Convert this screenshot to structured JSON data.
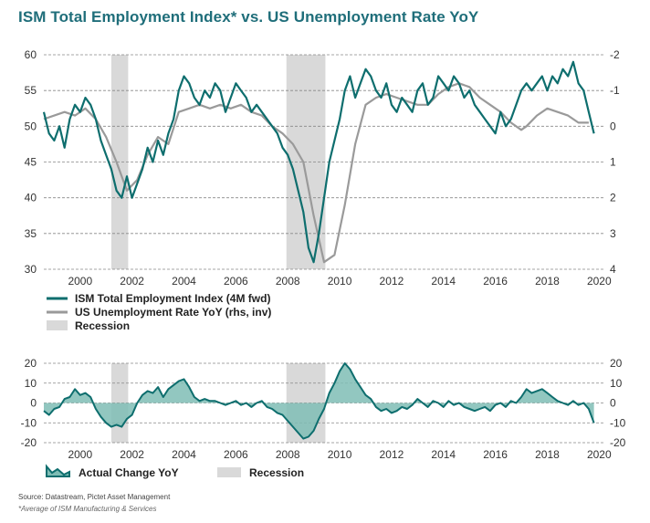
{
  "title": "ISM Total Employment Index* vs. US Unemployment Rate YoY",
  "source": "Source: Datastream, Pictet Asset Management",
  "footnote": "*Average of ISM Manufacturing & Services",
  "colors": {
    "ism": "#0e6e6e",
    "unemp": "#9a9a9a",
    "recession": "#d9d9d9",
    "area_fill": "#7fbdb5",
    "area_line": "#0e6e6e",
    "grid": "#888888"
  },
  "chart_data": [
    {
      "type": "line",
      "title": "",
      "legend": [
        {
          "label": "ISM Total Employment Index (4M fwd)"
        },
        {
          "label": "US Unemployment Rate YoY (rhs, inv)"
        },
        {
          "label": "Recession"
        }
      ],
      "x_ticks": [
        "2000",
        "2002",
        "2004",
        "2006",
        "2008",
        "2010",
        "2012",
        "2014",
        "2016",
        "2018",
        "2020"
      ],
      "y_left_ticks": [
        "30",
        "35",
        "40",
        "45",
        "50",
        "55",
        "60"
      ],
      "y_right_ticks": [
        "4",
        "3",
        "2",
        "1",
        "0",
        "-1",
        "-2"
      ],
      "ylim_left": [
        30,
        60
      ],
      "ylim_right_inverted": [
        4,
        -2
      ],
      "xlim": [
        1998.6,
        2020.2
      ],
      "recessions": [
        [
          2001.2,
          2001.85
        ],
        [
          2007.95,
          2009.45
        ]
      ],
      "series": [
        {
          "name": "ISM Total Employment Index (4M fwd)",
          "axis": "left",
          "x": [
            1998.6,
            1998.8,
            1999.0,
            1999.2,
            1999.4,
            1999.6,
            1999.8,
            2000.0,
            2000.2,
            2000.4,
            2000.6,
            2000.8,
            2001.0,
            2001.2,
            2001.4,
            2001.6,
            2001.8,
            2002.0,
            2002.2,
            2002.4,
            2002.6,
            2002.8,
            2003.0,
            2003.2,
            2003.4,
            2003.6,
            2003.8,
            2004.0,
            2004.2,
            2004.4,
            2004.6,
            2004.8,
            2005.0,
            2005.2,
            2005.4,
            2005.6,
            2005.8,
            2006.0,
            2006.2,
            2006.4,
            2006.6,
            2006.8,
            2007.0,
            2007.2,
            2007.4,
            2007.6,
            2007.8,
            2008.0,
            2008.2,
            2008.4,
            2008.6,
            2008.8,
            2009.0,
            2009.2,
            2009.4,
            2009.6,
            2009.8,
            2010.0,
            2010.2,
            2010.4,
            2010.6,
            2010.8,
            2011.0,
            2011.2,
            2011.4,
            2011.6,
            2011.8,
            2012.0,
            2012.2,
            2012.4,
            2012.6,
            2012.8,
            2013.0,
            2013.2,
            2013.4,
            2013.6,
            2013.8,
            2014.0,
            2014.2,
            2014.4,
            2014.6,
            2014.8,
            2015.0,
            2015.2,
            2015.4,
            2015.6,
            2015.8,
            2016.0,
            2016.2,
            2016.4,
            2016.6,
            2016.8,
            2017.0,
            2017.2,
            2017.4,
            2017.6,
            2017.8,
            2018.0,
            2018.2,
            2018.4,
            2018.6,
            2018.8,
            2019.0,
            2019.2,
            2019.4,
            2019.6,
            2019.8
          ],
          "values": [
            52,
            49,
            48,
            50,
            47,
            51,
            53,
            52,
            54,
            53,
            51,
            48,
            46,
            44,
            41,
            40,
            43,
            40,
            42,
            44,
            47,
            45,
            48,
            46,
            49,
            51,
            55,
            57,
            56,
            54,
            53,
            55,
            54,
            56,
            55,
            52,
            54,
            56,
            55,
            54,
            52,
            53,
            52,
            51,
            50,
            49,
            47,
            46,
            44,
            41,
            38,
            33,
            31,
            35,
            40,
            45,
            48,
            51,
            55,
            57,
            54,
            56,
            58,
            57,
            55,
            54,
            56,
            53,
            52,
            54,
            53,
            52,
            55,
            56,
            53,
            54,
            57,
            56,
            55,
            57,
            56,
            54,
            55,
            53,
            52,
            51,
            50,
            49,
            52,
            50,
            51,
            53,
            55,
            56,
            55,
            56,
            57,
            55,
            57,
            56,
            58,
            57,
            59,
            56,
            55,
            52,
            49
          ]
        },
        {
          "name": "US Unemployment Rate YoY (rhs, inv)",
          "axis": "right",
          "x": [
            1998.6,
            1999.0,
            1999.4,
            1999.8,
            2000.2,
            2000.6,
            2001.0,
            2001.4,
            2001.8,
            2002.2,
            2002.6,
            2003.0,
            2003.4,
            2003.8,
            2004.2,
            2004.6,
            2005.0,
            2005.4,
            2005.8,
            2006.2,
            2006.6,
            2007.0,
            2007.4,
            2007.8,
            2008.2,
            2008.6,
            2009.0,
            2009.4,
            2009.8,
            2010.2,
            2010.6,
            2011.0,
            2011.4,
            2011.8,
            2012.2,
            2012.6,
            2013.0,
            2013.4,
            2013.8,
            2014.2,
            2014.6,
            2015.0,
            2015.4,
            2015.8,
            2016.2,
            2016.6,
            2017.0,
            2017.2,
            2017.6,
            2018.0,
            2018.4,
            2018.8,
            2019.2,
            2019.6
          ],
          "values": [
            -0.2,
            -0.3,
            -0.4,
            -0.3,
            -0.5,
            -0.2,
            0.3,
            1.0,
            1.8,
            1.5,
            0.8,
            0.3,
            0.5,
            -0.4,
            -0.5,
            -0.6,
            -0.5,
            -0.6,
            -0.5,
            -0.6,
            -0.4,
            -0.3,
            0,
            0.2,
            0.5,
            1.0,
            2.5,
            3.8,
            3.6,
            2.2,
            0.5,
            -0.6,
            -0.8,
            -0.9,
            -0.8,
            -0.7,
            -0.6,
            -0.6,
            -0.9,
            -1.1,
            -1.2,
            -1.1,
            -0.8,
            -0.6,
            -0.4,
            -0.1,
            0.1,
            0,
            -0.3,
            -0.5,
            -0.4,
            -0.3,
            -0.1,
            -0.1
          ]
        }
      ]
    },
    {
      "type": "area",
      "title": "",
      "legend": [
        {
          "label": "Actual Change YoY"
        },
        {
          "label": "Recession"
        }
      ],
      "x_ticks": [
        "2000",
        "2002",
        "2004",
        "2006",
        "2008",
        "2010",
        "2012",
        "2014",
        "2016",
        "2018",
        "2020"
      ],
      "y_ticks": [
        "20",
        "10",
        "0",
        "-10",
        "-20"
      ],
      "y_right_ticks": [
        "20",
        "10",
        "0",
        "-10",
        "-20"
      ],
      "ylim": [
        -20,
        20
      ],
      "xlim": [
        1998.6,
        2020.2
      ],
      "recessions": [
        [
          2001.2,
          2001.85
        ],
        [
          2007.95,
          2009.45
        ]
      ],
      "series": [
        {
          "name": "Actual Change YoY",
          "x": [
            1998.6,
            1998.8,
            1999.0,
            1999.2,
            1999.4,
            1999.6,
            1999.8,
            2000.0,
            2000.2,
            2000.4,
            2000.6,
            2000.8,
            2001.0,
            2001.2,
            2001.4,
            2001.6,
            2001.8,
            2002.0,
            2002.2,
            2002.4,
            2002.6,
            2002.8,
            2003.0,
            2003.2,
            2003.4,
            2003.6,
            2003.8,
            2004.0,
            2004.2,
            2004.4,
            2004.6,
            2004.8,
            2005.0,
            2005.2,
            2005.4,
            2005.6,
            2005.8,
            2006.0,
            2006.2,
            2006.4,
            2006.6,
            2006.8,
            2007.0,
            2007.2,
            2007.4,
            2007.6,
            2007.8,
            2008.0,
            2008.2,
            2008.4,
            2008.6,
            2008.8,
            2009.0,
            2009.2,
            2009.4,
            2009.6,
            2009.8,
            2010.0,
            2010.2,
            2010.4,
            2010.6,
            2010.8,
            2011.0,
            2011.2,
            2011.4,
            2011.6,
            2011.8,
            2012.0,
            2012.2,
            2012.4,
            2012.6,
            2012.8,
            2013.0,
            2013.2,
            2013.4,
            2013.6,
            2013.8,
            2014.0,
            2014.2,
            2014.4,
            2014.6,
            2014.8,
            2015.0,
            2015.2,
            2015.4,
            2015.6,
            2015.8,
            2016.0,
            2016.2,
            2016.4,
            2016.6,
            2016.8,
            2017.0,
            2017.2,
            2017.4,
            2017.6,
            2017.8,
            2018.0,
            2018.2,
            2018.4,
            2018.6,
            2018.8,
            2019.0,
            2019.2,
            2019.4,
            2019.6,
            2019.8
          ],
          "values": [
            -4,
            -6,
            -3,
            -2,
            2,
            3,
            7,
            4,
            5,
            3,
            -3,
            -7,
            -10,
            -12,
            -11,
            -12,
            -8,
            -6,
            0,
            4,
            6,
            5,
            8,
            3,
            7,
            9,
            11,
            12,
            8,
            3,
            1,
            2,
            1,
            1,
            0,
            -1,
            0,
            1,
            -1,
            0,
            -2,
            0,
            1,
            -2,
            -3,
            -5,
            -6,
            -9,
            -12,
            -15,
            -18,
            -17,
            -14,
            -8,
            -3,
            5,
            10,
            16,
            20,
            17,
            12,
            8,
            4,
            2,
            -2,
            -4,
            -3,
            -5,
            -4,
            -2,
            -3,
            -1,
            2,
            0,
            -2,
            1,
            0,
            -2,
            1,
            -1,
            0,
            -2,
            -3,
            -4,
            -3,
            -2,
            -4,
            -1,
            0,
            -2,
            1,
            0,
            3,
            7,
            5,
            6,
            7,
            5,
            3,
            1,
            0,
            -1,
            1,
            -1,
            0,
            -3,
            -10
          ]
        }
      ]
    }
  ]
}
